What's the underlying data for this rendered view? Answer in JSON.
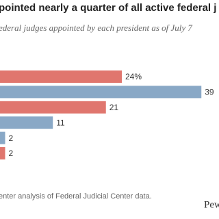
{
  "chart_data": {
    "type": "bar",
    "orientation": "horizontal",
    "title": "pointed nearly a quarter of all active federal j",
    "subtitle": "ederal judges appointed by each president as of July 7",
    "values": [
      24,
      39,
      21,
      11,
      2,
      2
    ],
    "value_labels": [
      "24%",
      "39",
      "21",
      "11",
      "2",
      "2"
    ],
    "colors": [
      "#e0766e",
      "#89a8c6",
      "#e0766e",
      "#89a8c6",
      "#89a8c6",
      "#e0766e"
    ],
    "source": "enter analysis of Federal Judicial Center data.",
    "brand": "Pew"
  }
}
